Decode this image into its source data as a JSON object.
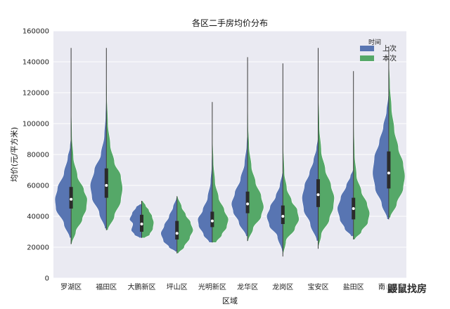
{
  "chart_data": {
    "type": "violin",
    "title": "各区二手房均价分布",
    "xlabel": "区域",
    "ylabel": "均价(元/平方米)",
    "ylim": [
      0,
      160000
    ],
    "yticks": [
      0,
      20000,
      40000,
      60000,
      80000,
      100000,
      120000,
      140000,
      160000
    ],
    "categories": [
      "罗湖区",
      "福田区",
      "大鹏新区",
      "坪山区",
      "光明新区",
      "龙华区",
      "龙岗区",
      "宝安区",
      "盐田区",
      "南山区"
    ],
    "legend": {
      "title": "时间",
      "placement": "top-right"
    },
    "series": [
      {
        "name": "上次",
        "color": "#5875b2",
        "violins": [
          {
            "min": 26000,
            "q1": 45000,
            "median": 51000,
            "q3": 59000,
            "max": 91000,
            "profile": [
              [
                26000,
                0.1
              ],
              [
                35000,
                0.45
              ],
              [
                45000,
                0.95
              ],
              [
                51000,
                1.0
              ],
              [
                58000,
                0.85
              ],
              [
                68000,
                0.45
              ],
              [
                78000,
                0.22
              ],
              [
                85000,
                0.08
              ],
              [
                91000,
                0.03
              ]
            ]
          },
          {
            "min": 32000,
            "q1": 52000,
            "median": 60000,
            "q3": 71000,
            "max": 118000,
            "profile": [
              [
                32000,
                0.1
              ],
              [
                42000,
                0.45
              ],
              [
                52000,
                0.9
              ],
              [
                60000,
                1.0
              ],
              [
                70000,
                0.75
              ],
              [
                80000,
                0.35
              ],
              [
                92000,
                0.14
              ],
              [
                105000,
                0.06
              ],
              [
                118000,
                0.02
              ]
            ]
          },
          {
            "min": 26000,
            "q1": 30000,
            "median": 35000,
            "q3": 41000,
            "max": 48000,
            "profile": [
              [
                26000,
                0.15
              ],
              [
                28000,
                0.45
              ],
              [
                31000,
                0.65
              ],
              [
                35000,
                0.55
              ],
              [
                38000,
                0.75
              ],
              [
                42000,
                0.6
              ],
              [
                46000,
                0.35
              ],
              [
                48000,
                0.12
              ]
            ]
          },
          {
            "min": 17000,
            "q1": 25000,
            "median": 29000,
            "q3": 37000,
            "max": 52000,
            "profile": [
              [
                17000,
                0.1
              ],
              [
                20000,
                0.5
              ],
              [
                24000,
                0.85
              ],
              [
                29000,
                1.0
              ],
              [
                34000,
                0.8
              ],
              [
                40000,
                0.5
              ],
              [
                46000,
                0.25
              ],
              [
                52000,
                0.05
              ]
            ]
          },
          {
            "min": 23000,
            "q1": 33000,
            "median": 37000,
            "q3": 43000,
            "max": 85000,
            "profile": [
              [
                23000,
                0.2
              ],
              [
                28000,
                0.55
              ],
              [
                34000,
                0.85
              ],
              [
                38000,
                0.9
              ],
              [
                44000,
                0.6
              ],
              [
                52000,
                0.3
              ],
              [
                62000,
                0.12
              ],
              [
                72000,
                0.05
              ],
              [
                85000,
                0.02
              ]
            ]
          },
          {
            "min": 27000,
            "q1": 42000,
            "median": 48000,
            "q3": 56000,
            "max": 96000,
            "profile": [
              [
                27000,
                0.1
              ],
              [
                36000,
                0.55
              ],
              [
                43000,
                0.9
              ],
              [
                48000,
                1.0
              ],
              [
                55000,
                0.8
              ],
              [
                64000,
                0.45
              ],
              [
                74000,
                0.2
              ],
              [
                86000,
                0.07
              ],
              [
                96000,
                0.02
              ]
            ]
          },
          {
            "min": 17000,
            "q1": 35000,
            "median": 40000,
            "q3": 47000,
            "max": 68000,
            "profile": [
              [
                17000,
                0.05
              ],
              [
                27000,
                0.35
              ],
              [
                34000,
                0.85
              ],
              [
                40000,
                1.0
              ],
              [
                46000,
                0.8
              ],
              [
                53000,
                0.45
              ],
              [
                60000,
                0.2
              ],
              [
                68000,
                0.05
              ]
            ]
          },
          {
            "min": 24000,
            "q1": 46000,
            "median": 54000,
            "q3": 64000,
            "max": 90000,
            "profile": [
              [
                24000,
                0.1
              ],
              [
                35000,
                0.5
              ],
              [
                44000,
                0.9
              ],
              [
                52000,
                1.0
              ],
              [
                60000,
                0.85
              ],
              [
                68000,
                0.55
              ],
              [
                76000,
                0.3
              ],
              [
                84000,
                0.12
              ],
              [
                90000,
                0.04
              ]
            ]
          },
          {
            "min": 27000,
            "q1": 38000,
            "median": 45000,
            "q3": 52000,
            "max": 70000,
            "profile": [
              [
                27000,
                0.15
              ],
              [
                32000,
                0.55
              ],
              [
                38000,
                0.85
              ],
              [
                45000,
                1.0
              ],
              [
                52000,
                0.8
              ],
              [
                60000,
                0.45
              ],
              [
                66000,
                0.2
              ],
              [
                70000,
                0.05
              ]
            ]
          },
          {
            "min": 38000,
            "q1": 58000,
            "median": 68000,
            "q3": 82000,
            "max": 118000,
            "profile": [
              [
                38000,
                0.1
              ],
              [
                48000,
                0.45
              ],
              [
                58000,
                0.85
              ],
              [
                68000,
                1.0
              ],
              [
                78000,
                0.9
              ],
              [
                88000,
                0.6
              ],
              [
                98000,
                0.35
              ],
              [
                108000,
                0.15
              ],
              [
                118000,
                0.04
              ]
            ]
          }
        ]
      },
      {
        "name": "本次",
        "color": "#55a868",
        "violins": [
          {
            "min": 22000,
            "q1": 45000,
            "median": 51000,
            "q3": 59000,
            "max": 149000,
            "profile": [
              [
                22000,
                0.05
              ],
              [
                30000,
                0.3
              ],
              [
                38000,
                0.7
              ],
              [
                45000,
                0.95
              ],
              [
                51000,
                1.0
              ],
              [
                57000,
                0.8
              ],
              [
                66000,
                0.4
              ],
              [
                78000,
                0.15
              ],
              [
                92000,
                0.06
              ],
              [
                110000,
                0.025
              ],
              [
                130000,
                0.012
              ],
              [
                149000,
                0.005
              ]
            ]
          },
          {
            "min": 31000,
            "q1": 52000,
            "median": 60000,
            "q3": 71000,
            "max": 149000,
            "profile": [
              [
                31000,
                0.1
              ],
              [
                40000,
                0.5
              ],
              [
                50000,
                0.9
              ],
              [
                58000,
                1.0
              ],
              [
                66000,
                0.9
              ],
              [
                75000,
                0.5
              ],
              [
                86000,
                0.25
              ],
              [
                100000,
                0.1
              ],
              [
                118000,
                0.04
              ],
              [
                135000,
                0.015
              ],
              [
                149000,
                0.005
              ]
            ]
          },
          {
            "min": 26000,
            "q1": 30000,
            "median": 35000,
            "q3": 41000,
            "max": 50000,
            "profile": [
              [
                26000,
                0.2
              ],
              [
                28000,
                0.5
              ],
              [
                32000,
                0.7
              ],
              [
                36000,
                0.75
              ],
              [
                40000,
                0.65
              ],
              [
                44000,
                0.45
              ],
              [
                47000,
                0.25
              ],
              [
                50000,
                0.08
              ]
            ]
          },
          {
            "min": 16000,
            "q1": 25000,
            "median": 29000,
            "q3": 37000,
            "max": 53000,
            "profile": [
              [
                16000,
                0.1
              ],
              [
                20000,
                0.45
              ],
              [
                26000,
                0.8
              ],
              [
                31000,
                1.0
              ],
              [
                36000,
                0.85
              ],
              [
                41000,
                0.55
              ],
              [
                46000,
                0.3
              ],
              [
                53000,
                0.05
              ]
            ]
          },
          {
            "min": 23000,
            "q1": 33000,
            "median": 37000,
            "q3": 43000,
            "max": 114000,
            "profile": [
              [
                23000,
                0.25
              ],
              [
                28000,
                0.6
              ],
              [
                33000,
                0.9
              ],
              [
                38000,
                1.0
              ],
              [
                44000,
                0.75
              ],
              [
                52000,
                0.4
              ],
              [
                62000,
                0.18
              ],
              [
                75000,
                0.08
              ],
              [
                90000,
                0.035
              ],
              [
                114000,
                0.01
              ]
            ]
          },
          {
            "min": 24000,
            "q1": 42000,
            "median": 48000,
            "q3": 56000,
            "max": 143000,
            "profile": [
              [
                24000,
                0.05
              ],
              [
                32000,
                0.35
              ],
              [
                40000,
                0.85
              ],
              [
                46000,
                1.0
              ],
              [
                53000,
                0.85
              ],
              [
                62000,
                0.5
              ],
              [
                72000,
                0.25
              ],
              [
                85000,
                0.1
              ],
              [
                100000,
                0.04
              ],
              [
                120000,
                0.015
              ],
              [
                143000,
                0.005
              ]
            ]
          },
          {
            "min": 14000,
            "q1": 35000,
            "median": 40000,
            "q3": 47000,
            "max": 139000,
            "profile": [
              [
                14000,
                0.02
              ],
              [
                24000,
                0.2
              ],
              [
                32000,
                0.75
              ],
              [
                38000,
                1.0
              ],
              [
                44000,
                0.9
              ],
              [
                50000,
                0.55
              ],
              [
                58000,
                0.25
              ],
              [
                68000,
                0.1
              ],
              [
                85000,
                0.04
              ],
              [
                110000,
                0.015
              ],
              [
                139000,
                0.005
              ]
            ]
          },
          {
            "min": 19000,
            "q1": 46000,
            "median": 54000,
            "q3": 64000,
            "max": 149000,
            "profile": [
              [
                19000,
                0.02
              ],
              [
                28000,
                0.2
              ],
              [
                38000,
                0.7
              ],
              [
                46000,
                0.95
              ],
              [
                52000,
                1.0
              ],
              [
                60000,
                0.8
              ],
              [
                70000,
                0.45
              ],
              [
                82000,
                0.2
              ],
              [
                98000,
                0.08
              ],
              [
                120000,
                0.025
              ],
              [
                149000,
                0.005
              ]
            ]
          },
          {
            "min": 25000,
            "q1": 38000,
            "median": 45000,
            "q3": 52000,
            "max": 134000,
            "profile": [
              [
                25000,
                0.1
              ],
              [
                30000,
                0.5
              ],
              [
                36000,
                0.9
              ],
              [
                42000,
                1.0
              ],
              [
                48000,
                0.85
              ],
              [
                56000,
                0.5
              ],
              [
                66000,
                0.2
              ],
              [
                80000,
                0.08
              ],
              [
                100000,
                0.03
              ],
              [
                134000,
                0.005
              ]
            ]
          },
          {
            "min": 39000,
            "q1": 58000,
            "median": 68000,
            "q3": 82000,
            "max": 150000,
            "profile": [
              [
                39000,
                0.1
              ],
              [
                48000,
                0.5
              ],
              [
                58000,
                0.9
              ],
              [
                66000,
                1.0
              ],
              [
                74000,
                0.9
              ],
              [
                84000,
                0.6
              ],
              [
                96000,
                0.35
              ],
              [
                110000,
                0.18
              ],
              [
                125000,
                0.08
              ],
              [
                140000,
                0.03
              ],
              [
                150000,
                0.01
              ]
            ]
          }
        ]
      }
    ]
  },
  "watermark": "鼹鼠找房"
}
